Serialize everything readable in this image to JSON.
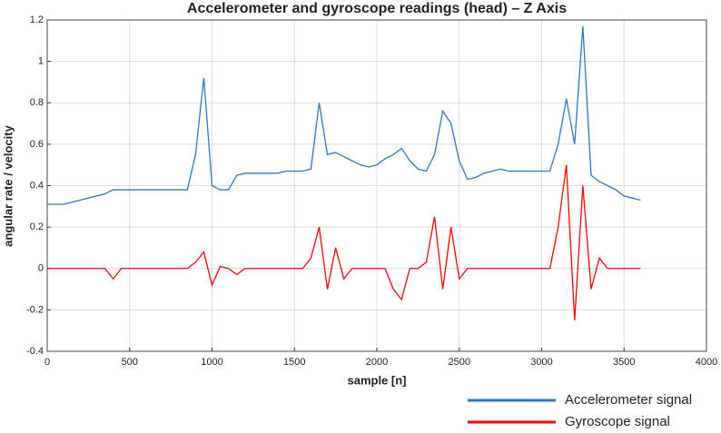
{
  "chart_data": {
    "type": "line",
    "title": "Accelerometer and gyroscope readings (head) – Z Axis",
    "xlabel": "sample [n]",
    "ylabel": "angular rate / velocity",
    "x": [
      0,
      50,
      100,
      150,
      200,
      250,
      300,
      350,
      400,
      450,
      500,
      550,
      600,
      650,
      700,
      750,
      800,
      850,
      900,
      950,
      1000,
      1050,
      1100,
      1150,
      1200,
      1250,
      1300,
      1350,
      1400,
      1450,
      1500,
      1550,
      1600,
      1650,
      1700,
      1750,
      1800,
      1850,
      1900,
      1950,
      2000,
      2050,
      2100,
      2150,
      2200,
      2250,
      2300,
      2350,
      2400,
      2450,
      2500,
      2550,
      2600,
      2650,
      2700,
      2750,
      2800,
      2850,
      2900,
      2950,
      3000,
      3050,
      3100,
      3150,
      3200,
      3250,
      3300,
      3350,
      3400,
      3450,
      3500,
      3550,
      3600
    ],
    "series": [
      {
        "name": "Accelerometer signal",
        "color": "#2e78c2",
        "values": [
          0.31,
          0.31,
          0.31,
          0.32,
          0.33,
          0.34,
          0.35,
          0.36,
          0.38,
          0.38,
          0.38,
          0.38,
          0.38,
          0.38,
          0.38,
          0.38,
          0.38,
          0.38,
          0.55,
          0.92,
          0.4,
          0.38,
          0.38,
          0.45,
          0.46,
          0.46,
          0.46,
          0.46,
          0.46,
          0.47,
          0.47,
          0.47,
          0.48,
          0.8,
          0.55,
          0.56,
          0.54,
          0.52,
          0.5,
          0.49,
          0.5,
          0.53,
          0.55,
          0.58,
          0.52,
          0.48,
          0.47,
          0.55,
          0.76,
          0.7,
          0.52,
          0.43,
          0.44,
          0.46,
          0.47,
          0.48,
          0.47,
          0.47,
          0.47,
          0.47,
          0.47,
          0.47,
          0.6,
          0.82,
          0.6,
          1.17,
          0.45,
          0.42,
          0.4,
          0.38,
          0.35,
          0.34,
          0.33
        ]
      },
      {
        "name": "Gyroscope signal",
        "color": "#ff0000",
        "values": [
          0,
          0,
          0,
          0,
          0,
          0,
          0,
          0,
          -0.05,
          0,
          0,
          0,
          0,
          0,
          0,
          0,
          0,
          0,
          0.03,
          0.08,
          -0.08,
          0.01,
          0,
          -0.03,
          0,
          0,
          0,
          0,
          0,
          0,
          0,
          0,
          0.05,
          0.2,
          -0.1,
          0.1,
          -0.05,
          0,
          0,
          0,
          0,
          0,
          -0.1,
          -0.15,
          0,
          0,
          0.03,
          0.25,
          -0.1,
          0.2,
          -0.05,
          0,
          0,
          0,
          0,
          0,
          0,
          0,
          0,
          0,
          0,
          0,
          0.2,
          0.5,
          -0.25,
          0.4,
          -0.1,
          0.05,
          0,
          0,
          0,
          0,
          0
        ]
      }
    ],
    "xlim": [
      0,
      4000
    ],
    "xticks": [
      0,
      500,
      1000,
      1500,
      2000,
      2500,
      3000,
      3500,
      4000
    ],
    "ylim": [
      -0.4,
      1.2
    ],
    "yticks": [
      1.2,
      1,
      0.8,
      0.6,
      0.4,
      0.2,
      0,
      -0.2,
      -0.4
    ],
    "grid": true
  }
}
